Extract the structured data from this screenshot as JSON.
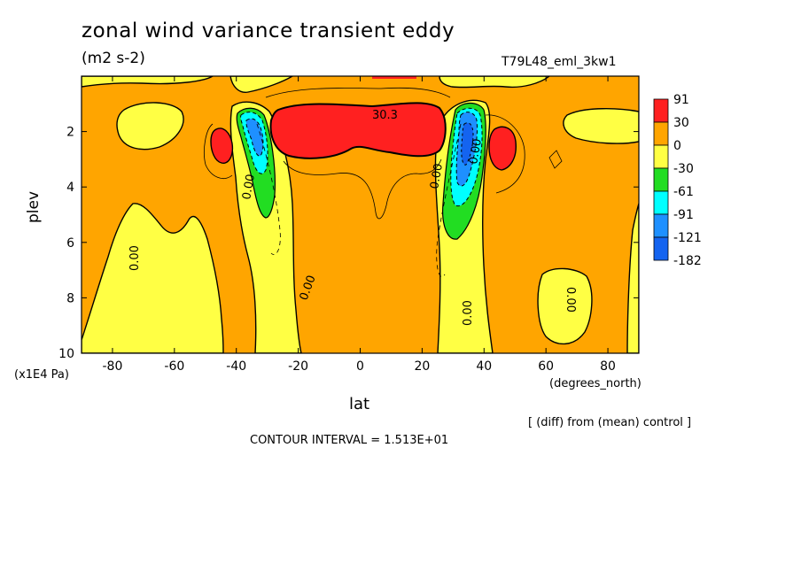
{
  "header": {
    "title": "zonal wind variance transient eddy",
    "units": "(m2 s-2)",
    "run_name": "T79L48_eml_3kw1"
  },
  "footer": {
    "note": "[ (diff) from (mean) control ]",
    "contour_interval": "CONTOUR INTERVAL = 1.513E+01"
  },
  "chart_data": {
    "type": "heatmap",
    "title": "zonal wind variance transient eddy",
    "subtitle": "(m2 s-2)",
    "xlabel": "lat",
    "xunit": "(degrees_north)",
    "ylabel": "plev",
    "yunit": "(x1E4 Pa)",
    "xlim": [
      -90,
      90
    ],
    "ylim": [
      10,
      0
    ],
    "x_ticks": [
      -80,
      -60,
      -40,
      -20,
      0,
      20,
      40,
      60,
      80
    ],
    "y_ticks": [
      2,
      4,
      6,
      8,
      10
    ],
    "legend": {
      "placement": "right",
      "levels": [
        "91",
        "30",
        "0",
        "-30",
        "-61",
        "-91",
        "-121",
        "-182"
      ],
      "colors": [
        "#ff2020",
        "#ffa500",
        "#ffff44",
        "#22dd22",
        "#00ffff",
        "#1e90ff",
        "#1464f0"
      ]
    },
    "contour_labels": [
      "30.3",
      "0.00",
      "0.00",
      "0.00",
      "0.00",
      "0.00",
      "0.00",
      "0.00"
    ],
    "contour_interval": 15.13,
    "regions": [
      {
        "name": "jet-core-positive",
        "lat_range": [
          -22,
          24
        ],
        "plev_range": [
          1.0,
          3.0
        ],
        "level": "91"
      },
      {
        "name": "sh-jet-negative",
        "lat_range": [
          -40,
          -28
        ],
        "plev_range": [
          1.0,
          5.2
        ],
        "level": "-121"
      },
      {
        "name": "nh-jet-negative",
        "lat_range": [
          28,
          42
        ],
        "plev_range": [
          1.0,
          6.0
        ],
        "level": "-182"
      },
      {
        "name": "sh-blob-positive",
        "lat_range": [
          -48,
          -42
        ],
        "plev_range": [
          1.8,
          2.9
        ],
        "level": "91"
      },
      {
        "name": "nh-blob-positive",
        "lat_range": [
          42,
          50
        ],
        "plev_range": [
          1.8,
          3.2
        ],
        "level": "91"
      }
    ]
  }
}
